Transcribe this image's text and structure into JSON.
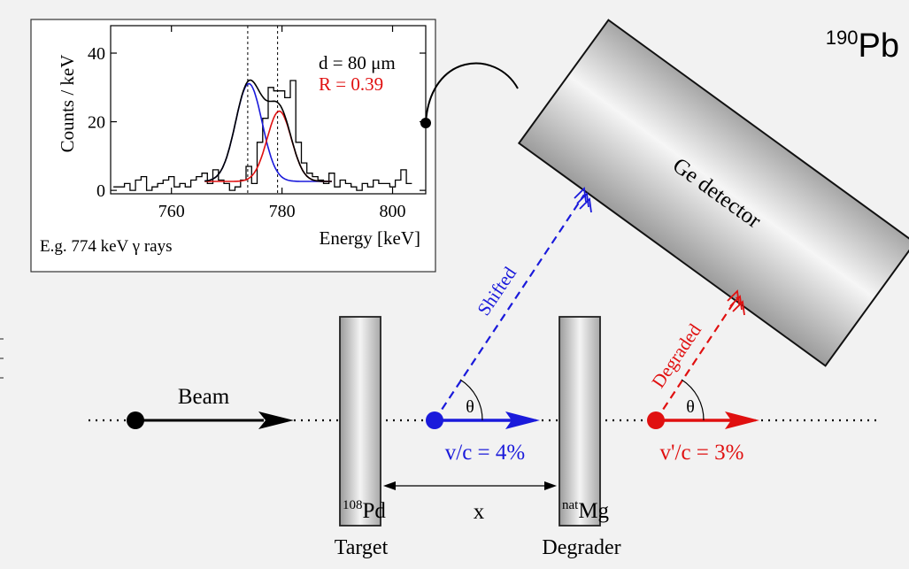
{
  "colors": {
    "shifted": "#1a1adb",
    "degraded": "#e01010",
    "fit_total": "#000000",
    "fit_shifted": "#1a1adb",
    "fit_degraded": "#e01010",
    "histogram": "#000000",
    "background": "#f2f2f2",
    "panel": "#ffffff"
  },
  "nucleus": {
    "mass": "190",
    "symbol": "Pb"
  },
  "inset": {
    "param_d": "d = 80 μm",
    "param_R": "R = 0.39",
    "ylabel": "Counts / keV",
    "xlabel": "Energy [keV]",
    "caption": "E.g. 774 keV γ rays",
    "yticks": [
      "0",
      "20",
      "40"
    ],
    "xticks": [
      "760",
      "780",
      "800"
    ]
  },
  "chart_data": {
    "type": "line",
    "xlabel": "Energy [keV]",
    "ylabel": "Counts / keV",
    "xlim": [
      749,
      806
    ],
    "ylim": [
      -1,
      48
    ],
    "xticks": [
      760,
      780,
      800
    ],
    "yticks": [
      0,
      20,
      40
    ],
    "dashed_lines": [
      773.8,
      779.2
    ],
    "histogram": {
      "x_start": 749.5,
      "bin_width": 1,
      "values": [
        1,
        1,
        2,
        0,
        3,
        4,
        0,
        1,
        2,
        3,
        4,
        1,
        2,
        1,
        3,
        4,
        5,
        2,
        6,
        3,
        2,
        0,
        1,
        3,
        7,
        2,
        14,
        21,
        30,
        29,
        29,
        27,
        32,
        14,
        8,
        5,
        4,
        3,
        2,
        5,
        1,
        3,
        2,
        1,
        0,
        2,
        1,
        3,
        2,
        2,
        1,
        3,
        6,
        2
      ]
    },
    "series": [
      {
        "color": "#1a1adb",
        "type": "gaussian",
        "center": 774.0,
        "amplitude": 28.5,
        "sigma": 2.4,
        "baseline": 2.6,
        "range": [
          766,
          789
        ]
      },
      {
        "color": "#e01010",
        "type": "gaussian",
        "center": 779.5,
        "amplitude": 20.5,
        "sigma": 2.2,
        "baseline": 2.6,
        "range": [
          766,
          789
        ]
      },
      {
        "color": "#000000",
        "type": "sum",
        "baseline": 2.6,
        "range": [
          766,
          789
        ]
      }
    ]
  },
  "detector": {
    "label": "Ge detector"
  },
  "beam": {
    "label": "Beam"
  },
  "target": {
    "isotope_mass": "108",
    "isotope_symbol": "Pd",
    "name": "Target"
  },
  "degrader": {
    "isotope_mass": "nat",
    "isotope_symbol": "Mg",
    "name": "Degrader"
  },
  "distance": {
    "label": "x"
  },
  "shifted": {
    "label": "Shifted",
    "velocity": "v/c = 4%",
    "angle": "θ"
  },
  "degraded": {
    "label": "Degraded",
    "velocity": "v'/c = 3%",
    "angle": "θ"
  }
}
